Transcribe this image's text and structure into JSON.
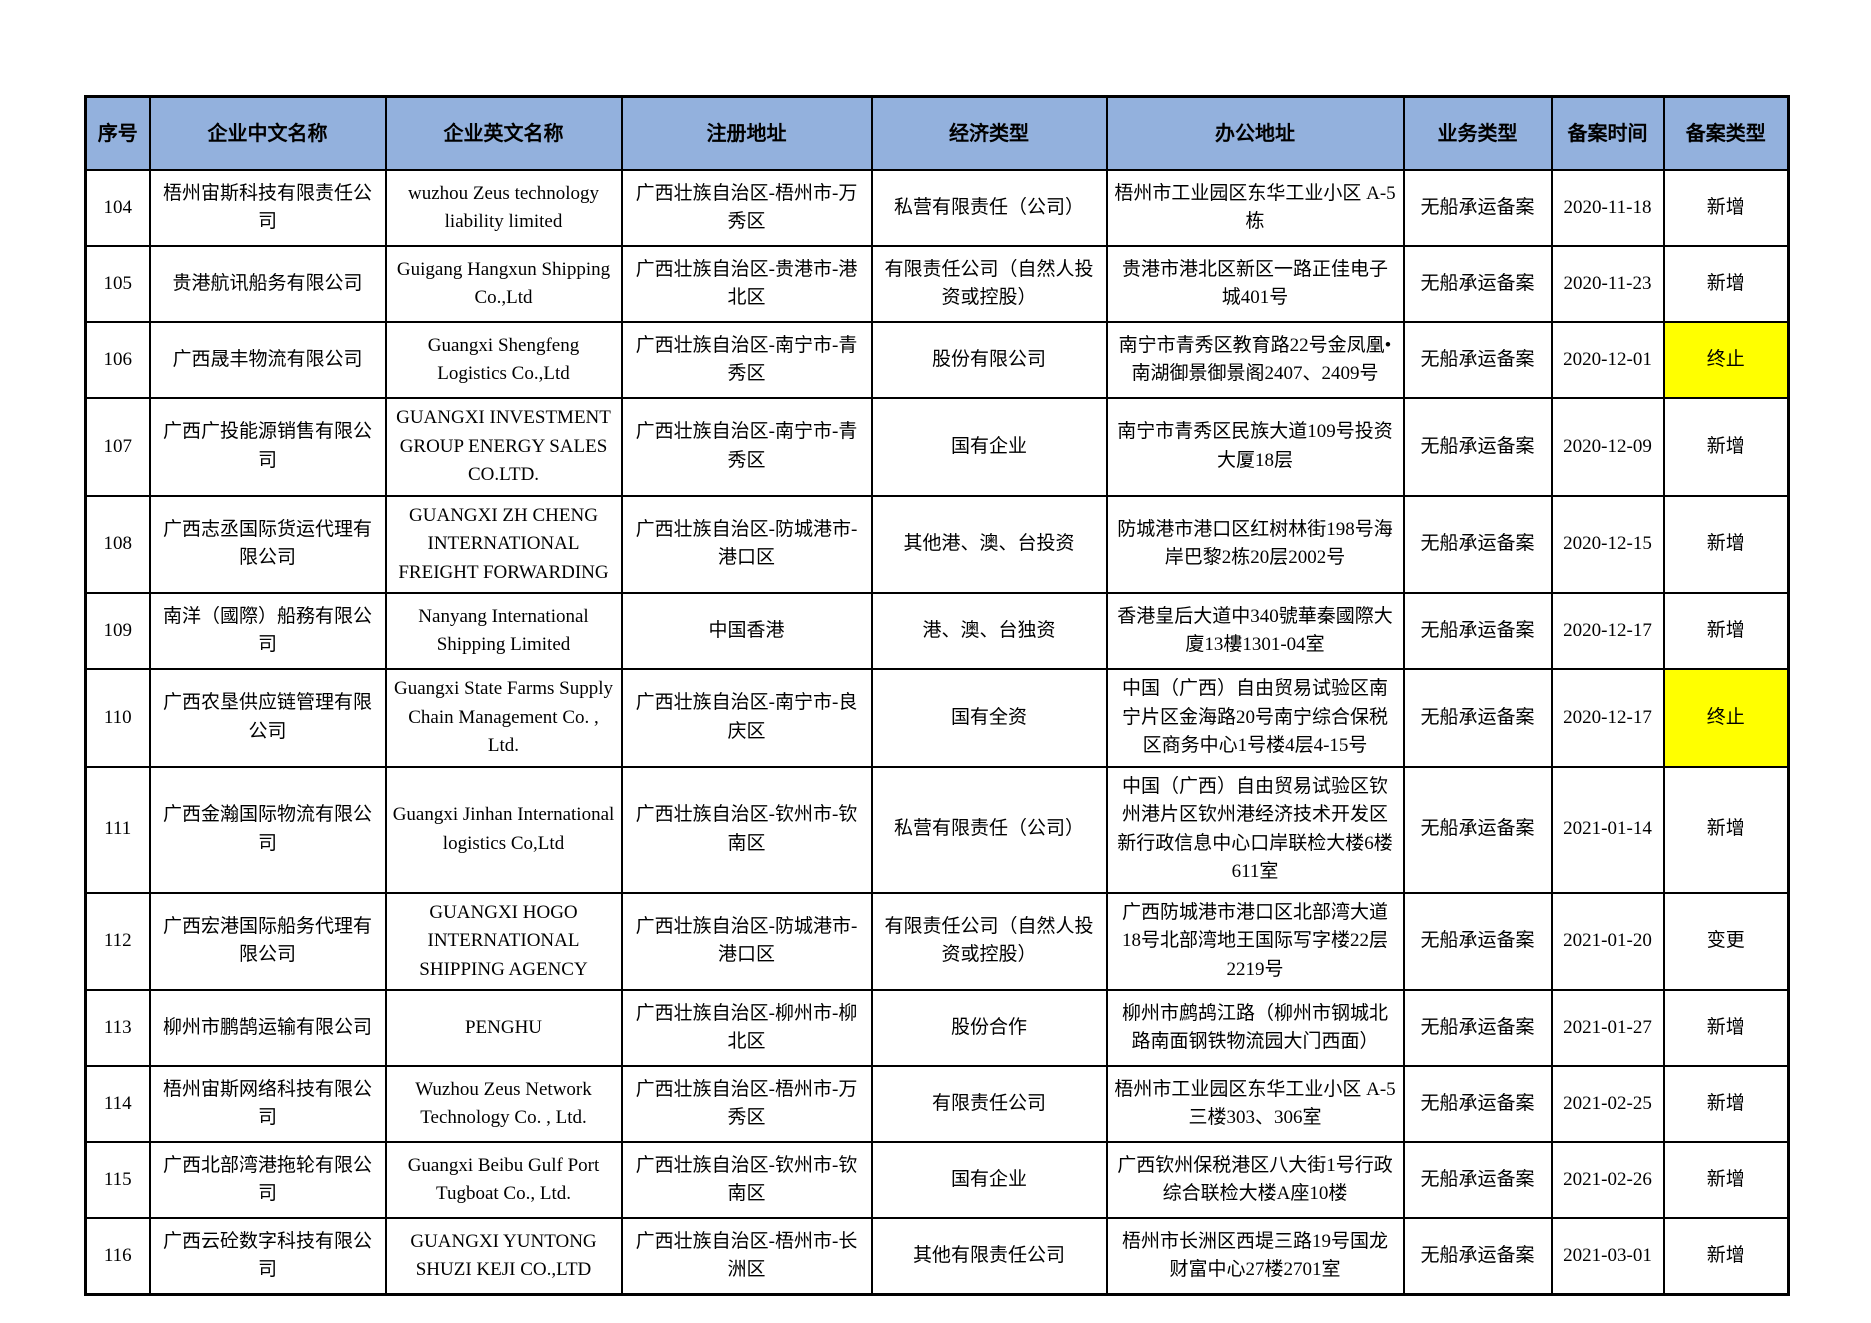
{
  "colors": {
    "header_bg": "#93B1DD",
    "highlight_bg": "#FFFF00",
    "border": "#000000"
  },
  "table": {
    "columns": [
      "序号",
      "企业中文名称",
      "企业英文名称",
      "注册地址",
      "经济类型",
      "办公地址",
      "业务类型",
      "备案时间",
      "备案类型"
    ],
    "rows": [
      {
        "no": "104",
        "cn": "梧州宙斯科技有限责任公司",
        "en": "wuzhou Zeus technology liability limited",
        "reg": "广西壮族自治区-梧州市-万秀区",
        "econ": "私营有限责任（公司）",
        "office": "梧州市工业园区东华工业小区 A-5栋",
        "biz": "无船承运备案",
        "date": "2020-11-18",
        "type": "新增",
        "highlight": false
      },
      {
        "no": "105",
        "cn": "贵港航讯船务有限公司",
        "en": "Guigang Hangxun Shipping Co.,Ltd",
        "reg": "广西壮族自治区-贵港市-港北区",
        "econ": "有限责任公司（自然人投资或控股）",
        "office": "贵港市港北区新区一路正佳电子城401号",
        "biz": "无船承运备案",
        "date": "2020-11-23",
        "type": "新增",
        "highlight": false
      },
      {
        "no": "106",
        "cn": "广西晟丰物流有限公司",
        "en": "Guangxi Shengfeng Logistics Co.,Ltd",
        "reg": "广西壮族自治区-南宁市-青秀区",
        "econ": "股份有限公司",
        "office": "南宁市青秀区教育路22号金凤凰•南湖御景御景阁2407、2409号",
        "biz": "无船承运备案",
        "date": "2020-12-01",
        "type": "终止",
        "highlight": true
      },
      {
        "no": "107",
        "cn": "广西广投能源销售有限公司",
        "en": "GUANGXI INVESTMENT GROUP ENERGY SALES CO.LTD.",
        "reg": "广西壮族自治区-南宁市-青秀区",
        "econ": "国有企业",
        "office": "南宁市青秀区民族大道109号投资大厦18层",
        "biz": "无船承运备案",
        "date": "2020-12-09",
        "type": "新增",
        "highlight": false
      },
      {
        "no": "108",
        "cn": "广西志丞国际货运代理有限公司",
        "en": "GUANGXI ZH CHENG INTERNATIONAL FREIGHT FORWARDING",
        "reg": "广西壮族自治区-防城港市-港口区",
        "econ": "其他港、澳、台投资",
        "office": "防城港市港口区红树林街198号海岸巴黎2栋20层2002号",
        "biz": "无船承运备案",
        "date": "2020-12-15",
        "type": "新增",
        "highlight": false
      },
      {
        "no": "109",
        "cn": "南洋（國際）船務有限公司",
        "en": "Nanyang International Shipping Limited",
        "reg": "中国香港",
        "econ": "港、澳、台独资",
        "office": "香港皇后大道中340號華秦國際大廈13樓1301-04室",
        "biz": "无船承运备案",
        "date": "2020-12-17",
        "type": "新增",
        "highlight": false
      },
      {
        "no": "110",
        "cn": "广西农垦供应链管理有限公司",
        "en": "Guangxi State Farms Supply Chain Management Co. , Ltd.",
        "reg": "广西壮族自治区-南宁市-良庆区",
        "econ": "国有全资",
        "office": "中国（广西）自由贸易试验区南宁片区金海路20号南宁综合保税区商务中心1号楼4层4-15号",
        "biz": "无船承运备案",
        "date": "2020-12-17",
        "type": "终止",
        "highlight": true
      },
      {
        "no": "111",
        "cn": "广西金瀚国际物流有限公司",
        "en": "Guangxi Jinhan International logistics Co,Ltd",
        "reg": "广西壮族自治区-钦州市-钦南区",
        "econ": "私营有限责任（公司）",
        "office": "中国（广西）自由贸易试验区钦州港片区钦州港经济技术开发区新行政信息中心口岸联检大楼6楼611室",
        "biz": "无船承运备案",
        "date": "2021-01-14",
        "type": "新增",
        "highlight": false
      },
      {
        "no": "112",
        "cn": "广西宏港国际船务代理有限公司",
        "en": "GUANGXI HOGO INTERNATIONAL SHIPPING AGENCY",
        "reg": "广西壮族自治区-防城港市-港口区",
        "econ": "有限责任公司（自然人投资或控股）",
        "office": "广西防城港市港口区北部湾大道18号北部湾地王国际写字楼22层2219号",
        "biz": "无船承运备案",
        "date": "2021-01-20",
        "type": "变更",
        "highlight": false
      },
      {
        "no": "113",
        "cn": "柳州市鹏鹄运输有限公司",
        "en": "PENGHU",
        "reg": "广西壮族自治区-柳州市-柳北区",
        "econ": "股份合作",
        "office": "柳州市鹧鸪江路（柳州市钢城北路南面钢铁物流园大门西面）",
        "biz": "无船承运备案",
        "date": "2021-01-27",
        "type": "新增",
        "highlight": false
      },
      {
        "no": "114",
        "cn": "梧州宙斯网络科技有限公司",
        "en": "Wuzhou Zeus Network Technology Co. , Ltd.",
        "reg": "广西壮族自治区-梧州市-万秀区",
        "econ": "有限责任公司",
        "office": "梧州市工业园区东华工业小区 A-5三楼303、306室",
        "biz": "无船承运备案",
        "date": "2021-02-25",
        "type": "新增",
        "highlight": false
      },
      {
        "no": "115",
        "cn": "广西北部湾港拖轮有限公司",
        "en": "Guangxi Beibu Gulf Port Tugboat Co., Ltd.",
        "reg": "广西壮族自治区-钦州市-钦南区",
        "econ": "国有企业",
        "office": "广西钦州保税港区八大街1号行政综合联检大楼A座10楼",
        "biz": "无船承运备案",
        "date": "2021-02-26",
        "type": "新增",
        "highlight": false
      },
      {
        "no": "116",
        "cn": "广西云砼数字科技有限公司",
        "en": "GUANGXI YUNTONG SHUZI KEJI CO.,LTD",
        "reg": "广西壮族自治区-梧州市-长洲区",
        "econ": "其他有限责任公司",
        "office": "梧州市长洲区西堤三路19号国龙财富中心27楼2701室",
        "biz": "无船承运备案",
        "date": "2021-03-01",
        "type": "新增",
        "highlight": false
      }
    ]
  }
}
